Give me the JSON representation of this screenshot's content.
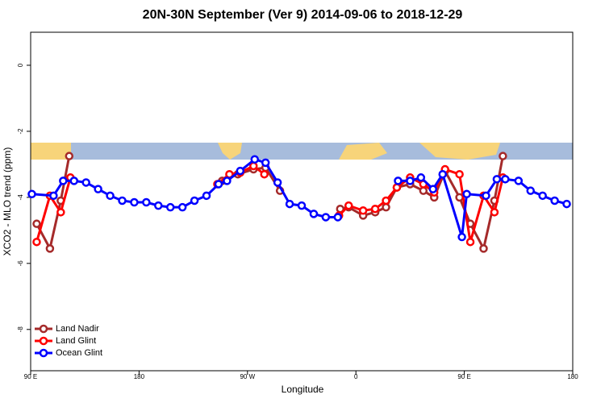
{
  "chart_data": {
    "type": "line",
    "title": "20N-30N September (Ver 9)   2014-09-06 to 2018-12-29",
    "x_label": "Longitude",
    "y_label": "XCO2 - MLO trend (ppm)",
    "xlim": [
      90,
      540
    ],
    "ylim": [
      -9.25,
      1.0
    ],
    "xticks": [
      {
        "value": 90,
        "label": "90 E"
      },
      180,
      {
        "value": 270,
        "label": "90 W"
      },
      {
        "value": 360,
        "label": "0"
      },
      {
        "value": 450,
        "label": "90 E"
      },
      {
        "value": 540,
        "label": "180"
      }
    ],
    "yticks": [
      0,
      -2,
      -4,
      -6,
      -8
    ],
    "legend": "bottom-left",
    "series": [
      {
        "name": "Land Nadir",
        "color": "#a52a2a",
        "x": [
          95,
          106,
          115,
          122,
          null,
          249,
          262,
          275,
          285,
          297,
          null,
          347,
          354,
          366,
          376,
          385,
          394,
          405,
          416,
          425,
          434,
          446,
          455,
          466,
          475,
          482
        ],
        "values": [
          -4.8,
          -5.55,
          -4.1,
          -2.75,
          null,
          -3.5,
          -3.3,
          -3.15,
          -3.1,
          -3.8,
          null,
          -4.35,
          -4.3,
          -4.55,
          -4.45,
          -4.3,
          -3.7,
          -3.6,
          -3.8,
          -4.0,
          -3.2,
          -4.0,
          -4.8,
          -5.55,
          -4.1,
          -2.75
        ]
      },
      {
        "name": "Land Glint",
        "color": "#ff0000",
        "x": [
          95,
          106,
          115,
          123,
          null,
          245,
          255,
          264,
          275,
          284,
          null,
          346,
          354,
          366,
          376,
          385,
          394,
          405,
          416,
          425,
          434,
          446,
          455,
          466,
          475,
          482
        ],
        "values": [
          -5.35,
          -3.95,
          -4.45,
          -3.4,
          null,
          -3.6,
          -3.3,
          -3.25,
          -3.05,
          -3.3,
          null,
          -4.55,
          -4.25,
          -4.4,
          -4.35,
          -4.1,
          -3.7,
          -3.4,
          -3.6,
          -3.85,
          -3.15,
          -3.3,
          -5.35,
          -3.95,
          -4.45,
          -3.4
        ]
      },
      {
        "name": "Ocean Glint",
        "color": "#0000ff",
        "x": [
          91,
          109,
          117,
          126,
          136,
          146,
          156,
          166,
          176,
          186,
          196,
          206,
          216,
          226,
          236,
          246,
          253,
          264,
          276,
          285,
          295,
          305,
          315,
          325,
          335,
          345,
          null,
          395,
          405,
          414,
          424,
          432,
          448,
          452,
          468,
          477,
          484,
          495,
          505,
          515,
          525,
          535
        ],
        "values": [
          -3.9,
          -3.95,
          -3.5,
          -3.5,
          -3.55,
          -3.75,
          -3.95,
          -4.1,
          -4.15,
          -4.15,
          -4.25,
          -4.3,
          -4.3,
          -4.1,
          -3.95,
          -3.6,
          -3.5,
          -3.2,
          -2.85,
          -2.95,
          -3.55,
          -4.2,
          -4.25,
          -4.5,
          -4.6,
          -4.6,
          null,
          -3.5,
          -3.5,
          -3.4,
          -3.75,
          -3.3,
          -5.2,
          -3.9,
          -3.95,
          -3.45,
          -3.45,
          -3.5,
          -3.8,
          -3.95,
          -4.1,
          -4.2
        ]
      }
    ]
  }
}
